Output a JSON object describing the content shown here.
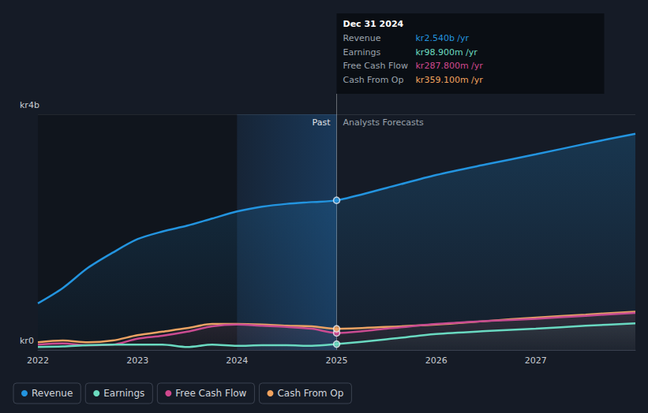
{
  "chart_data": {
    "type": "line",
    "x": [
      2022,
      2022.25,
      2022.5,
      2022.75,
      2023,
      2023.25,
      2023.5,
      2023.75,
      2024,
      2024.25,
      2024.5,
      2024.75,
      2025,
      2025.5,
      2026,
      2026.5,
      2027,
      2027.5,
      2028
    ],
    "xlim": [
      2022,
      2028
    ],
    "xticks": [
      2022,
      2023,
      2024,
      2025,
      2026,
      2027
    ],
    "ylim": [
      0,
      4
    ],
    "yticks": [
      {
        "value": 0,
        "label": "kr0"
      },
      {
        "value": 4,
        "label": "kr4b"
      }
    ],
    "grid": true,
    "legend": "bottom-left",
    "series": [
      {
        "name": "Revenue",
        "color": "#2394df",
        "values": [
          0.79,
          1.05,
          1.39,
          1.65,
          1.88,
          2.01,
          2.11,
          2.23,
          2.35,
          2.43,
          2.48,
          2.51,
          2.54,
          2.75,
          2.97,
          3.15,
          3.32,
          3.5,
          3.67
        ]
      },
      {
        "name": "Earnings",
        "color": "#6cdcc0",
        "values": [
          0.05,
          0.06,
          0.08,
          0.09,
          0.09,
          0.09,
          0.05,
          0.09,
          0.07,
          0.08,
          0.08,
          0.07,
          0.0989,
          0.18,
          0.27,
          0.32,
          0.36,
          0.41,
          0.45
        ]
      },
      {
        "name": "Free Cash Flow",
        "color": "#d0488e",
        "values": [
          0.09,
          0.11,
          0.08,
          0.09,
          0.19,
          0.24,
          0.31,
          0.4,
          0.43,
          0.41,
          0.39,
          0.36,
          0.2878,
          0.36,
          0.44,
          0.49,
          0.53,
          0.58,
          0.63
        ]
      },
      {
        "name": "Cash From Op",
        "color": "#f2a35e",
        "values": [
          0.13,
          0.16,
          0.13,
          0.16,
          0.25,
          0.31,
          0.37,
          0.44,
          0.44,
          0.43,
          0.41,
          0.4,
          0.3591,
          0.39,
          0.43,
          0.49,
          0.55,
          0.6,
          0.65
        ]
      }
    ],
    "annotations": {
      "past_label": "Past",
      "forecast_label": "Analysts Forecasts",
      "highlight": [
        2024,
        2025
      ],
      "tooltip": {
        "title": "Dec 31 2024",
        "x": 2025,
        "rows": [
          {
            "name": "Revenue",
            "value": 2.54,
            "label": "kr2.540b /yr"
          },
          {
            "name": "Earnings",
            "value": 0.0989,
            "label": "kr98.900m /yr"
          },
          {
            "name": "Free Cash Flow",
            "value": 0.2878,
            "label": "kr287.800m /yr"
          },
          {
            "name": "Cash From Op",
            "value": 0.3591,
            "label": "kr359.100m /yr"
          }
        ]
      }
    }
  }
}
